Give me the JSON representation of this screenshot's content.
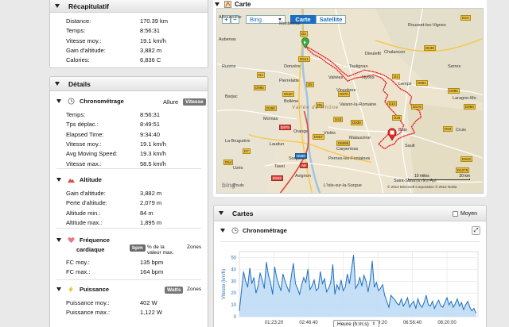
{
  "recap": {
    "title": "Récapitulatif",
    "rows": [
      {
        "label": "Distance:",
        "value": "170.39 km"
      },
      {
        "label": "Temps:",
        "value": "8:56:31"
      },
      {
        "label": "Vitesse moy.:",
        "value": "19.1 km/h"
      },
      {
        "label": "Gain d'altitude:",
        "value": "3,882 m"
      },
      {
        "label": "Calories:",
        "value": "6,836 C"
      }
    ]
  },
  "details": {
    "title": "Détails",
    "chrono": {
      "title": "Chronométrage",
      "allure_label": "Allure",
      "vitesse_badge": "Vitesse",
      "rows": [
        {
          "label": "Temps:",
          "value": "8:56:31"
        },
        {
          "label": "Tps déplac.:",
          "value": "8:49:51"
        },
        {
          "label": "Elapsed Time:",
          "value": "9:34:40"
        },
        {
          "label": "Vitesse moy.:",
          "value": "19.1 km/h"
        },
        {
          "label": "Avg Moving Speed:",
          "value": "19.3 km/h"
        },
        {
          "label": "Vitesse max.:",
          "value": "58.5 km/h"
        }
      ]
    },
    "altitude": {
      "title": "Altitude",
      "rows": [
        {
          "label": "Gain d'altitude:",
          "value": "3,882 m"
        },
        {
          "label": "Perte d'altitude:",
          "value": "2,079 m"
        },
        {
          "label": "Altitude min.:",
          "value": "84 m"
        },
        {
          "label": "Altitude max.:",
          "value": "1,895 m"
        }
      ]
    },
    "heart": {
      "title_line1": "Fréquence",
      "title_line2": "cardiaque",
      "bpm_badge": "bpm",
      "pct_line1": "% de la",
      "pct_line2": "valeur max.",
      "zones_label": "Zones",
      "rows": [
        {
          "label": "FC moy.:",
          "value": "135 bpm"
        },
        {
          "label": "FC max.:",
          "value": "164 bpm"
        }
      ]
    },
    "power": {
      "title": "Puissance",
      "watts_badge": "Watts",
      "zones_label": "Zones",
      "rows": [
        {
          "label": "Puissance moy.:",
          "value": "402 W"
        },
        {
          "label": "Puissance max.:",
          "value": "1,122 W"
        }
      ]
    }
  },
  "map": {
    "title": "Carte",
    "zoom_in": "+",
    "zoom_out": "−",
    "provider": "Bing",
    "view_carte": "Carte",
    "view_satellite": "Satellite",
    "region_label": "Vallée du Rhône",
    "copyright": "© 2012 Microsoft Corporation  © 2012 Nokia",
    "scale_miles": "10 miles",
    "scale_km": "20 km",
    "bing_logo": "bing",
    "towns": [
      "Montélimar",
      "Dieulefit",
      "Chalancon",
      "Rousset-les-Vignes",
      "Aubenas",
      "Ruoms",
      "Donzère",
      "Taulignan",
      "Valréas",
      "Nyons",
      "Lemps",
      "Serres",
      "Pierrelatte",
      "Vinsobres",
      "Barjac",
      "Bollène",
      "Vaison-la-Romaine",
      "Laragne-Mo",
      "Mornas",
      "Malaucène",
      "Orange",
      "Violès",
      "Buis",
      "La Bruguière",
      "Laudun",
      "Carpentras",
      "Sault",
      "Sorgues",
      "Pernes-les-Fontaines",
      "Uzès",
      "Tavel",
      "Avignon",
      "L'Isle-sur-la-Sorgue",
      "Saint-Saturnin-lès-Apt",
      "Poulx",
      "Cruis",
      "Alboussière"
    ],
    "road_badges": [
      "D2",
      "D541",
      "D4",
      "D994",
      "D5",
      "D540",
      "D290",
      "D976",
      "D8",
      "D43",
      "D975",
      "D938",
      "D907",
      "D6086",
      "N580",
      "A9",
      "D942",
      "D950",
      "D943",
      "D94",
      "D1075",
      "D951",
      "D4A",
      "D4",
      "D10",
      "D576",
      "D28",
      "D538",
      "D985",
      "D7",
      "D54"
    ]
  },
  "cartes": {
    "title": "Cartes",
    "moyen_label": "Moyen",
    "chrono_title": "Chronométrage",
    "expand_icon": "expand-icon"
  },
  "chart_data": {
    "type": "line",
    "title": "",
    "xlabel": "Heure (h:m:s)",
    "ylabel": "Vitesse (km/h)",
    "ylim": [
      0,
      55
    ],
    "yticks": [
      0,
      10,
      20,
      30,
      40,
      50
    ],
    "xticks": [
      "01:23:20",
      "02:46:40",
      "04:10:00",
      "05:33:20",
      "06:56:40",
      "08:20:00"
    ],
    "xlim_seconds": [
      0,
      34480
    ],
    "series": [
      {
        "x": [
          0,
          300,
          600,
          900,
          1200,
          1500,
          1800,
          2100,
          2400,
          2700,
          3000,
          3300,
          3600,
          3900,
          4200,
          4500,
          4800,
          5100,
          5400,
          5700,
          6000,
          6300,
          6600,
          6900,
          7200,
          7500,
          7800,
          8100,
          8400,
          8700,
          9000,
          9300,
          9600,
          9900,
          10200,
          10500,
          10800,
          11100,
          11400,
          11700,
          12000,
          12300,
          12600,
          12900,
          13200,
          13500,
          13800,
          14100,
          14400,
          14700,
          15000,
          15300,
          15600,
          15900,
          16200,
          16500,
          16800,
          17100,
          17400,
          17700,
          18000,
          18300,
          18600,
          18900,
          19200,
          19500,
          19800,
          20100,
          20400,
          20700,
          21000,
          21300,
          21600,
          21900,
          22200,
          22500,
          22800,
          23100,
          23400,
          23700,
          24000,
          24300,
          24600,
          24900,
          25200,
          25500,
          25800,
          26100,
          26400,
          26700,
          27000,
          27300,
          27600,
          27900,
          28200,
          28500,
          28800,
          29100,
          29400,
          29700,
          30000,
          30300,
          30600,
          30900,
          31200,
          31500,
          31800,
          32100,
          32400,
          32700,
          33000,
          33300,
          33600,
          33900,
          34200
        ],
        "values": [
          5,
          22,
          38,
          30,
          25,
          41,
          28,
          33,
          20,
          26,
          37,
          31,
          24,
          46,
          35,
          29,
          19,
          42,
          33,
          27,
          22,
          36,
          30,
          25,
          21,
          34,
          45,
          28,
          24,
          19,
          27,
          33,
          29,
          40,
          23,
          26,
          31,
          22,
          24,
          38,
          28,
          32,
          21,
          24,
          29,
          44,
          19,
          27,
          23,
          31,
          22,
          25,
          36,
          28,
          40,
          52,
          24,
          27,
          33,
          26,
          35,
          30,
          21,
          31,
          47,
          25,
          29,
          22,
          24,
          27,
          18,
          13,
          8,
          18,
          16,
          14,
          11,
          10,
          15,
          9,
          12,
          16,
          8,
          11,
          13,
          7,
          15,
          10,
          8,
          12,
          18,
          10,
          9,
          13,
          7,
          11,
          14,
          9,
          8,
          12,
          16,
          10,
          13,
          8,
          11,
          15,
          9,
          12,
          6,
          10,
          13,
          8,
          5,
          7,
          3
        ]
      }
    ],
    "grid": true,
    "fill": "area"
  }
}
